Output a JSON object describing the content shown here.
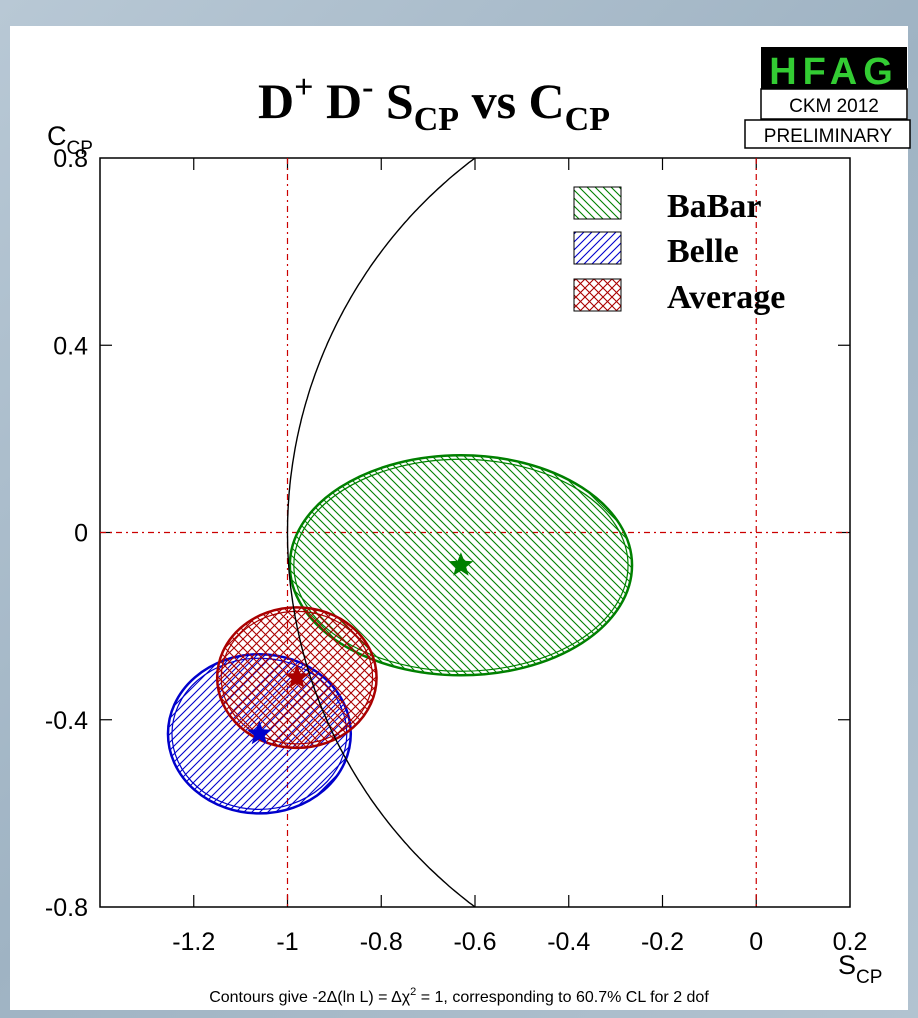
{
  "chart_data": {
    "type": "contour",
    "title": {
      "main": "D",
      "sup1": "+",
      "mid": " D",
      "sup2": "-",
      "s": " S",
      "sub1": "CP",
      "vs": " vs C",
      "sub2": "CP"
    },
    "xlabel": {
      "main": "S",
      "sub": "CP"
    },
    "ylabel": {
      "main": "C",
      "sub": "CP"
    },
    "xlim": [
      -1.4,
      0.2
    ],
    "ylim": [
      -0.8,
      0.8
    ],
    "xticks": [
      {
        "v": -1.2,
        "label": "-1.2"
      },
      {
        "v": -1.0,
        "label": "-1"
      },
      {
        "v": -0.8,
        "label": "-0.8"
      },
      {
        "v": -0.6,
        "label": "-0.6"
      },
      {
        "v": -0.4,
        "label": "-0.4"
      },
      {
        "v": -0.2,
        "label": "-0.2"
      },
      {
        "v": 0.0,
        "label": "0"
      },
      {
        "v": 0.2,
        "label": "0.2"
      }
    ],
    "yticks": [
      {
        "v": 0.8,
        "label": "0.8"
      },
      {
        "v": 0.4,
        "label": "0.4"
      },
      {
        "v": 0.0,
        "label": "0"
      },
      {
        "v": -0.4,
        "label": "-0.4"
      },
      {
        "v": -0.8,
        "label": "-0.8"
      }
    ],
    "reference_lines": {
      "x": [
        -1.0,
        0.0
      ],
      "y": [
        0.0
      ]
    },
    "boundary_circle": {
      "center": [
        0,
        0
      ],
      "radius": 1.0
    },
    "series": [
      {
        "name": "BaBar",
        "center": [
          -0.63,
          -0.07
        ],
        "sx": 0.365,
        "sy": 0.235,
        "color": "#008000",
        "hatch": "back"
      },
      {
        "name": "Belle",
        "center": [
          -1.06,
          -0.43
        ],
        "sx": 0.195,
        "sy": 0.17,
        "color": "#0000cc",
        "hatch": "fwd"
      },
      {
        "name": "Average",
        "center": [
          -0.98,
          -0.31
        ],
        "sx": 0.17,
        "sy": 0.15,
        "color": "#aa0000",
        "hatch": "cross"
      }
    ],
    "legend_position": "top-right",
    "footnote": {
      "a": "Contours give -2Δ(ln L) = Δχ",
      "sup": "2",
      "b": " = 1, corresponding to 60.7% CL for 2 dof"
    }
  },
  "badge": {
    "logo": "HFAG",
    "conference": "CKM 2012",
    "status": "PRELIMINARY"
  }
}
